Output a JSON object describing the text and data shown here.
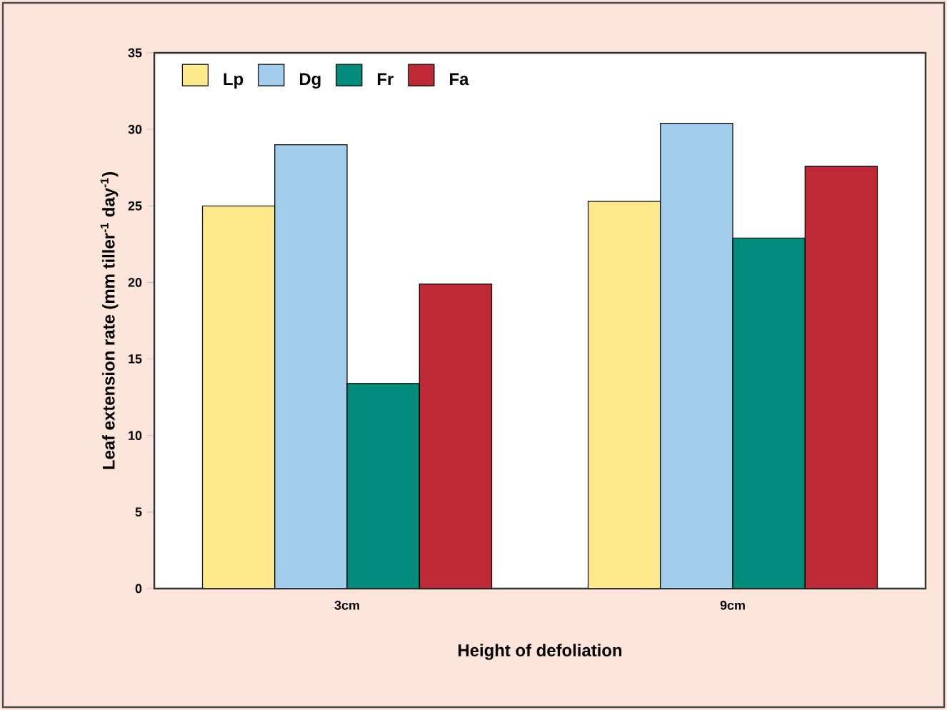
{
  "chart_data": {
    "type": "bar",
    "xlabel": "Height of defoliation",
    "ylabel": "Leaf extension rate (mm tiller$^{-1}$ day$^{-1}$)",
    "categories": [
      "3cm",
      "9cm"
    ],
    "series": [
      {
        "name": "Lp",
        "color": "#fde98a",
        "values": [
          25.0,
          25.3
        ]
      },
      {
        "name": "Dg",
        "color": "#a3cdec",
        "values": [
          29.0,
          30.4
        ]
      },
      {
        "name": "Fr",
        "color": "#008c7a",
        "values": [
          13.4,
          22.9
        ]
      },
      {
        "name": "Fa",
        "color": "#bd2935",
        "values": [
          19.9,
          27.6
        ]
      }
    ],
    "ylim": [
      0,
      35
    ],
    "yticks": [
      0,
      5,
      10,
      15,
      20,
      25,
      30,
      35
    ],
    "grid": false,
    "legend": "top left"
  }
}
